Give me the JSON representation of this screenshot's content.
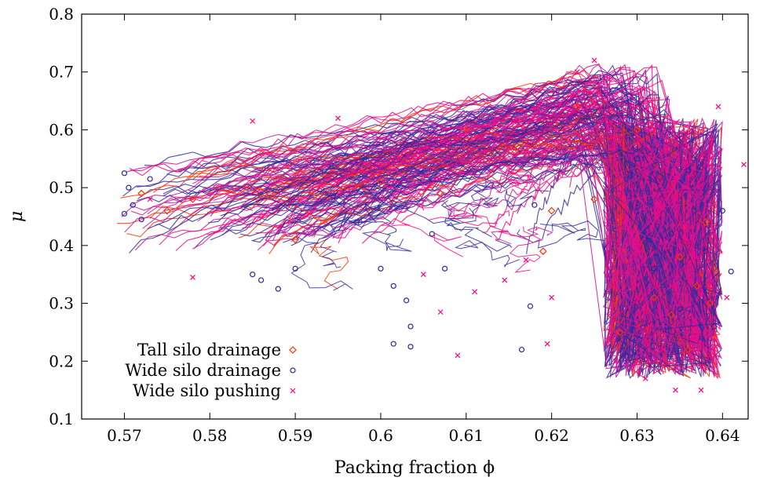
{
  "chart_data": {
    "type": "scatter",
    "xlabel": "Packing fraction ϕ",
    "ylabel": "μ",
    "xlim": [
      0.565,
      0.643
    ],
    "ylim": [
      0.1,
      0.8
    ],
    "xticks": [
      "0.57",
      "0.58",
      "0.59",
      "0.6",
      "0.61",
      "0.62",
      "0.63",
      "0.64"
    ],
    "yticks": [
      "0.1",
      "0.2",
      "0.3",
      "0.4",
      "0.5",
      "0.6",
      "0.7",
      "0.8"
    ],
    "legend_position": "bottom-left",
    "grid": false,
    "series": [
      {
        "name": "Tall silo drainage",
        "marker": "diamond",
        "color": "#ff3300",
        "points": [
          [
            0.572,
            0.49
          ],
          [
            0.575,
            0.46
          ],
          [
            0.578,
            0.48
          ],
          [
            0.59,
            0.41
          ],
          [
            0.6,
            0.51
          ],
          [
            0.607,
            0.49
          ],
          [
            0.61,
            0.6
          ],
          [
            0.619,
            0.39
          ],
          [
            0.62,
            0.46
          ],
          [
            0.623,
            0.64
          ],
          [
            0.625,
            0.48
          ],
          [
            0.628,
            0.25
          ],
          [
            0.63,
            0.6
          ],
          [
            0.632,
            0.31
          ],
          [
            0.634,
            0.28
          ],
          [
            0.635,
            0.38
          ],
          [
            0.636,
            0.22
          ],
          [
            0.637,
            0.33
          ],
          [
            0.638,
            0.44
          ],
          [
            0.6385,
            0.3
          ]
        ]
      },
      {
        "name": "Wide silo drainage",
        "marker": "circle",
        "color": "#2a2a9a",
        "points": [
          [
            0.57,
            0.525
          ],
          [
            0.5705,
            0.5
          ],
          [
            0.571,
            0.47
          ],
          [
            0.57,
            0.455
          ],
          [
            0.573,
            0.515
          ],
          [
            0.572,
            0.445
          ],
          [
            0.585,
            0.35
          ],
          [
            0.586,
            0.34
          ],
          [
            0.588,
            0.325
          ],
          [
            0.59,
            0.36
          ],
          [
            0.6,
            0.36
          ],
          [
            0.6015,
            0.33
          ],
          [
            0.603,
            0.305
          ],
          [
            0.6035,
            0.26
          ],
          [
            0.6015,
            0.23
          ],
          [
            0.6035,
            0.225
          ],
          [
            0.606,
            0.42
          ],
          [
            0.6075,
            0.36
          ],
          [
            0.6165,
            0.22
          ],
          [
            0.6175,
            0.295
          ],
          [
            0.618,
            0.47
          ],
          [
            0.63,
            0.55
          ],
          [
            0.632,
            0.36
          ],
          [
            0.634,
            0.42
          ],
          [
            0.635,
            0.29
          ],
          [
            0.636,
            0.53
          ],
          [
            0.638,
            0.39
          ],
          [
            0.64,
            0.46
          ],
          [
            0.641,
            0.355
          ],
          [
            0.639,
            0.26
          ]
        ]
      },
      {
        "name": "Wide silo pushing",
        "marker": "x",
        "color": "#ff0080",
        "points": [
          [
            0.573,
            0.48
          ],
          [
            0.578,
            0.345
          ],
          [
            0.585,
            0.615
          ],
          [
            0.595,
            0.62
          ],
          [
            0.605,
            0.35
          ],
          [
            0.607,
            0.285
          ],
          [
            0.609,
            0.21
          ],
          [
            0.611,
            0.32
          ],
          [
            0.6145,
            0.34
          ],
          [
            0.617,
            0.375
          ],
          [
            0.6195,
            0.23
          ],
          [
            0.62,
            0.31
          ],
          [
            0.623,
            0.7
          ],
          [
            0.625,
            0.72
          ],
          [
            0.6275,
            0.2
          ],
          [
            0.63,
            0.31
          ],
          [
            0.631,
            0.17
          ],
          [
            0.633,
            0.22
          ],
          [
            0.6345,
            0.15
          ],
          [
            0.6355,
            0.41
          ],
          [
            0.6365,
            0.24
          ],
          [
            0.6375,
            0.19
          ],
          [
            0.6385,
            0.21
          ],
          [
            0.6395,
            0.64
          ],
          [
            0.6405,
            0.31
          ],
          [
            0.6425,
            0.54
          ],
          [
            0.6375,
            0.15
          ],
          [
            0.634,
            0.33
          ]
        ]
      }
    ],
    "trajectory_colors": [
      "#2a2a9a",
      "#3b2ba0",
      "#ff0080",
      "#e0148a",
      "#ff3300",
      "#c41a9a"
    ],
    "trajectory_count": 180
  }
}
